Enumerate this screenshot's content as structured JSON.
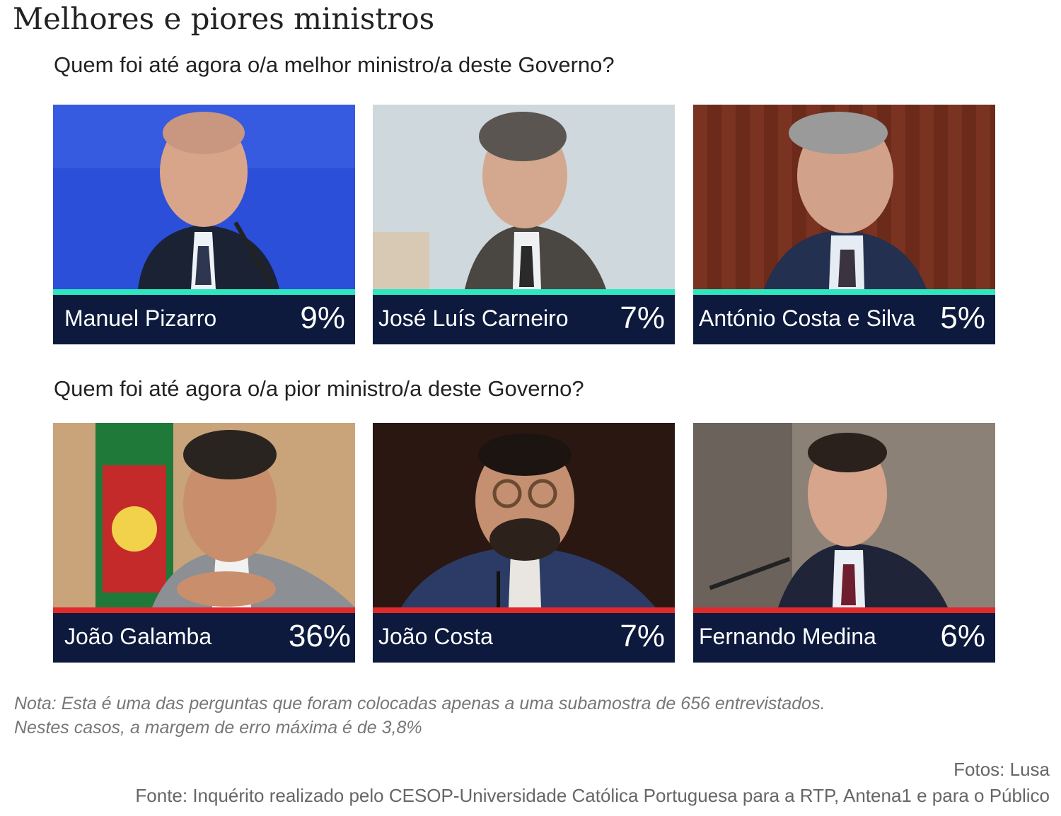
{
  "title": "Melhores e piores ministros",
  "best": {
    "question": "Quem foi até agora o/a melhor ministro/a deste Governo?",
    "accent_color": "#2ee6c0",
    "ministers": [
      {
        "name": "Manuel Pizarro",
        "percent": "9%",
        "photo_icon": "portrait-photo",
        "bg": "#2b4fd8"
      },
      {
        "name": "José Luís Carneiro",
        "percent": "7%",
        "photo_icon": "portrait-photo",
        "bg": "#cfd8dc"
      },
      {
        "name": "António Costa e Silva",
        "percent": "5%",
        "photo_icon": "portrait-photo",
        "bg": "#6b2a1a"
      }
    ]
  },
  "worst": {
    "question": "Quem foi até agora o/a pior ministro/a deste Governo?",
    "accent_color": "#e02a2a",
    "ministers": [
      {
        "name": "João Galamba",
        "percent": "36%",
        "photo_icon": "portrait-photo",
        "bg": "#c9a37a"
      },
      {
        "name": "João Costa",
        "percent": "7%",
        "photo_icon": "portrait-photo",
        "bg": "#2a1712"
      },
      {
        "name": "Fernando Medina",
        "percent": "6%",
        "photo_icon": "portrait-photo",
        "bg": "#8c8176"
      }
    ]
  },
  "note": {
    "line1": "Nota: Esta é uma das perguntas que foram colocadas apenas a uma subamostra de 656 entrevistados.",
    "line2": "Nestes casos, a margem de erro máxima é de 3,8%"
  },
  "photo_credit": "Fotos: Lusa",
  "source": "Fonte: Inquérito realizado pelo CESOP-Universidade Católica Portuguesa para a RTP,  Antena1 e para o Público"
}
